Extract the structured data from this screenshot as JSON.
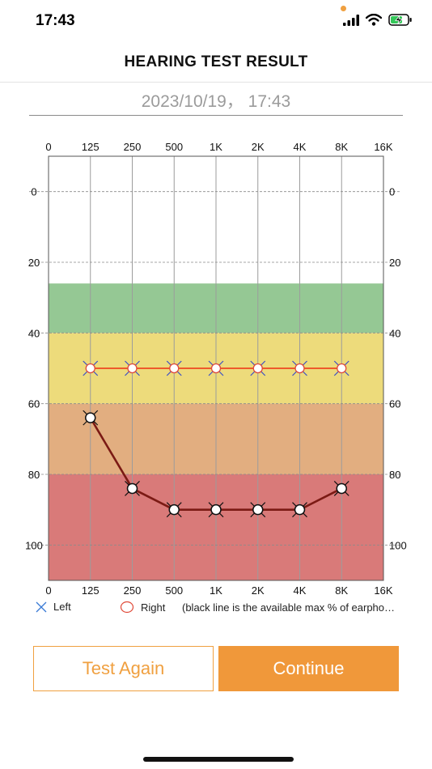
{
  "status_bar": {
    "time": "17:43",
    "icons": [
      "cellular-signal-icon",
      "wifi-icon",
      "battery-charging-icon"
    ]
  },
  "header": {
    "title": "HEARING TEST RESULT"
  },
  "date": "2023/10/19， 17:43",
  "chart_data": {
    "type": "line",
    "title": "",
    "x_tick_labels": [
      "0",
      "125",
      "250",
      "500",
      "1K",
      "2K",
      "4K",
      "8K",
      "16K"
    ],
    "y_tick_labels": [
      "0",
      "20",
      "40",
      "60",
      "80",
      "100"
    ],
    "y_ticks": [
      0,
      20,
      40,
      60,
      80,
      100
    ],
    "ylim": [
      -10,
      110
    ],
    "y_inverted": true,
    "grid": true,
    "zones": [
      {
        "from": 26,
        "to": 40,
        "color": "#95c894"
      },
      {
        "from": 40,
        "to": 60,
        "color": "#eddb7b"
      },
      {
        "from": 60,
        "to": 80,
        "color": "#e2ae80"
      },
      {
        "from": 80,
        "to": 110,
        "color": "#d97a79"
      }
    ],
    "categories": [
      "125",
      "250",
      "500",
      "1K",
      "2K",
      "4K",
      "8K"
    ],
    "series": [
      {
        "name": "Left",
        "marker": "x",
        "line_color": "#ee5a2b",
        "values": [
          50,
          50,
          50,
          50,
          50,
          50,
          50
        ]
      },
      {
        "name": "Right",
        "marker": "o",
        "line_color": "#7b1a14",
        "values": [
          64,
          84,
          90,
          90,
          90,
          90,
          84
        ]
      }
    ]
  },
  "legend": {
    "left_label": "Left",
    "right_label": "Right",
    "note": "(black line is the available max % of earphone volume)"
  },
  "buttons": {
    "test_again": "Test Again",
    "continue": "Continue"
  },
  "colors": {
    "accent": "#f0983a",
    "left_marker": "#3a7bd5",
    "right_marker": "#e04b3a"
  }
}
